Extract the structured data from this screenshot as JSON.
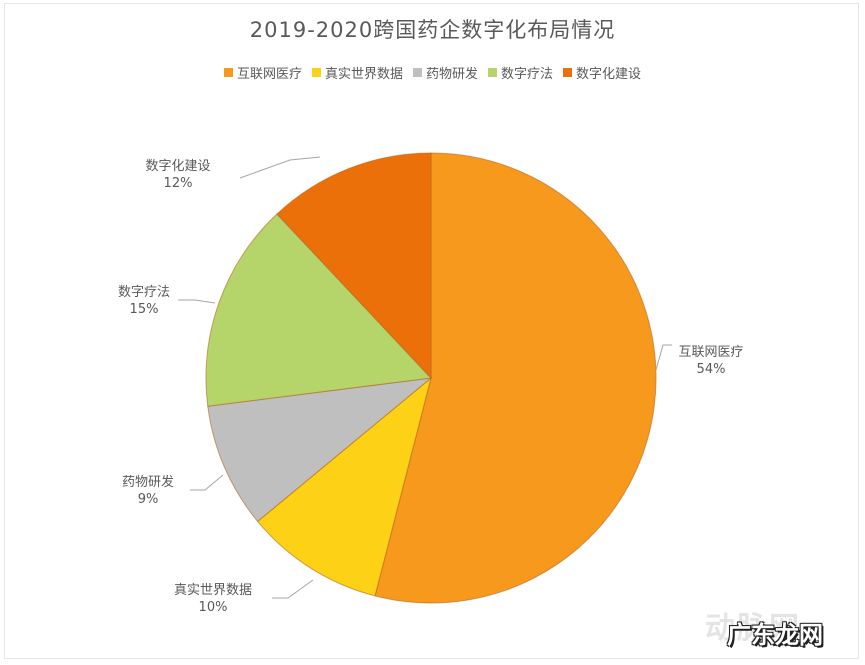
{
  "chart_data": {
    "type": "pie",
    "title": "2019-2020跨国药企数字化布局情况",
    "legend_position": "top",
    "categories": [
      "互联网医疗",
      "真实世界数据",
      "药物研发",
      "数字疗法",
      "数字化建设"
    ],
    "values": [
      54,
      10,
      9,
      15,
      12
    ],
    "labels": [
      "54%",
      "10%",
      "9%",
      "15%",
      "12%"
    ],
    "colors": [
      "#F7991C",
      "#FCD116",
      "#BFBFBF",
      "#B5D56A",
      "#EC700A"
    ],
    "start_angle": "12 o'clock",
    "direction": "clockwise"
  },
  "legend": {
    "items": [
      {
        "label": "互联网医疗",
        "color": "#F7991C"
      },
      {
        "label": "真实世界数据",
        "color": "#FCD116"
      },
      {
        "label": "药物研发",
        "color": "#BFBFBF"
      },
      {
        "label": "数字疗法",
        "color": "#B5D56A"
      },
      {
        "label": "数字化建设",
        "color": "#EC700A"
      }
    ]
  },
  "data_labels": [
    {
      "name": "互联网医疗",
      "pct": "54%"
    },
    {
      "name": "真实世界数据",
      "pct": "10%"
    },
    {
      "name": "药物研发",
      "pct": "9%"
    },
    {
      "name": "数字疗法",
      "pct": "15%"
    },
    {
      "name": "数字化建设",
      "pct": "12%"
    }
  ],
  "watermark": {
    "background_text": "动脉网",
    "foreground_text": "广东龙网"
  }
}
